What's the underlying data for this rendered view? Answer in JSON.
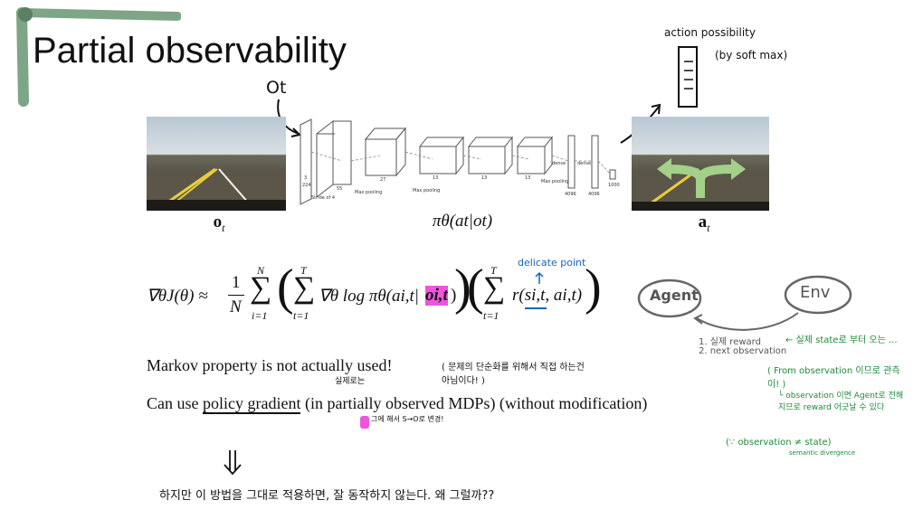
{
  "slide": {
    "title": "Partial observability",
    "obs_handwritten": "Ot",
    "label_o": "o",
    "label_o_sub": "t",
    "label_policy": "πθ(at|ot)",
    "label_a": "a",
    "label_a_sub": "t",
    "note_action_prob": "action possibility",
    "note_softmax": "(by soft max)"
  },
  "network": {
    "layer_labels": [
      "Stride of 4",
      "Max pooling",
      "Max pooling",
      "Max pooling",
      "dense",
      "dense"
    ],
    "dims": [
      "3",
      "224",
      "55",
      "27",
      "13",
      "13",
      "13",
      "4096",
      "4096",
      "1000"
    ]
  },
  "equation": {
    "lhs": "∇θJ(θ) ≈",
    "frac_num": "1",
    "frac_den": "N",
    "sum1_top": "N",
    "sum1_bot": "i=1",
    "sum2_top": "T",
    "sum2_bot": "t=1",
    "term1": "∇θ log πθ(ai,t|",
    "term1_highlight": "oi,t",
    "term1_end": ")",
    "sum3_top": "T",
    "sum3_bot": "t=1",
    "term2": "r(si,t, ai,t)",
    "note_delicate": "delicate point"
  },
  "diagram": {
    "agent": "Agent",
    "env": "Env",
    "list_1": "1. 실제 reward",
    "list_2": "2. next observation",
    "note_state": "← 실제 state로 부터 오는 ...",
    "note_from_obs": "( From observation 이므로 관측이! )",
    "note_obs": "└ observation 이면 Agent로 전해지므로 reward 어긋날 수 있다",
    "note_bottom": "(∵ observation ≠ state)",
    "note_semantic": "semantic divergence"
  },
  "text": {
    "line1_a": "Markov property is not ",
    "line1_b": "actually",
    "line1_c": " used!",
    "line1_note": "( 문제의 단순화를 위해서 직접 하는건 아님이다! )",
    "line1_note2": "실제로는",
    "line2_a": "Can use ",
    "line2_b": "policy gradient",
    "line2_c": " (in partially observed MDPs) (without modification)",
    "line2_note": "그에 해서 S→O로 변경!",
    "bottom_note": "하지만 이 방법을 그대로 적용하면, 잘 동작하지 않는다. 왜 그럴까??"
  },
  "colors": {
    "title_highlight": "#6f9b79",
    "pink": "#ee55dd",
    "green": "#1f8a3b",
    "blue": "#1565c0",
    "arrow_green": "#a4d08a"
  }
}
